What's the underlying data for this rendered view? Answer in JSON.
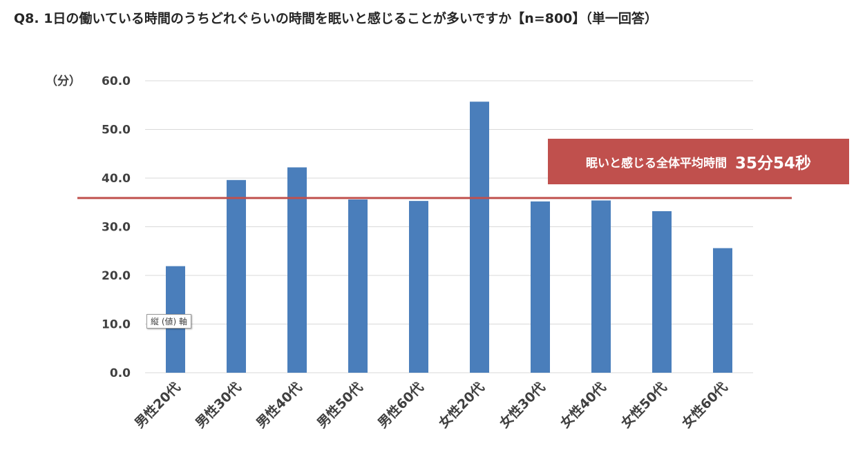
{
  "title": "Q8. 1日の働いている時間のうちどれぐらいの時間を眠いと感じることが多いですか【n=800】（単一回答）",
  "chart_data": {
    "type": "bar",
    "categories": [
      "男性20代",
      "男性30代",
      "男性40代",
      "男性50代",
      "男性60代",
      "女性20代",
      "女性30代",
      "女性40代",
      "女性50代",
      "女性60代"
    ],
    "values": [
      21.9,
      39.6,
      42.2,
      35.6,
      35.3,
      55.7,
      35.2,
      35.4,
      33.2,
      25.6
    ],
    "ylabel": "（分）",
    "ylim": [
      0,
      60
    ],
    "yticks": [
      "0.0",
      "10.0",
      "20.0",
      "30.0",
      "40.0",
      "50.0",
      "60.0"
    ],
    "bar_color": "#4a7ebb",
    "grid": true,
    "average_line": {
      "value": 35.9,
      "color": "#c0504d",
      "label": "眠いと感じる全体平均時間",
      "value_text": "35分54秒"
    }
  },
  "tooltip": "縦 (値) 軸"
}
